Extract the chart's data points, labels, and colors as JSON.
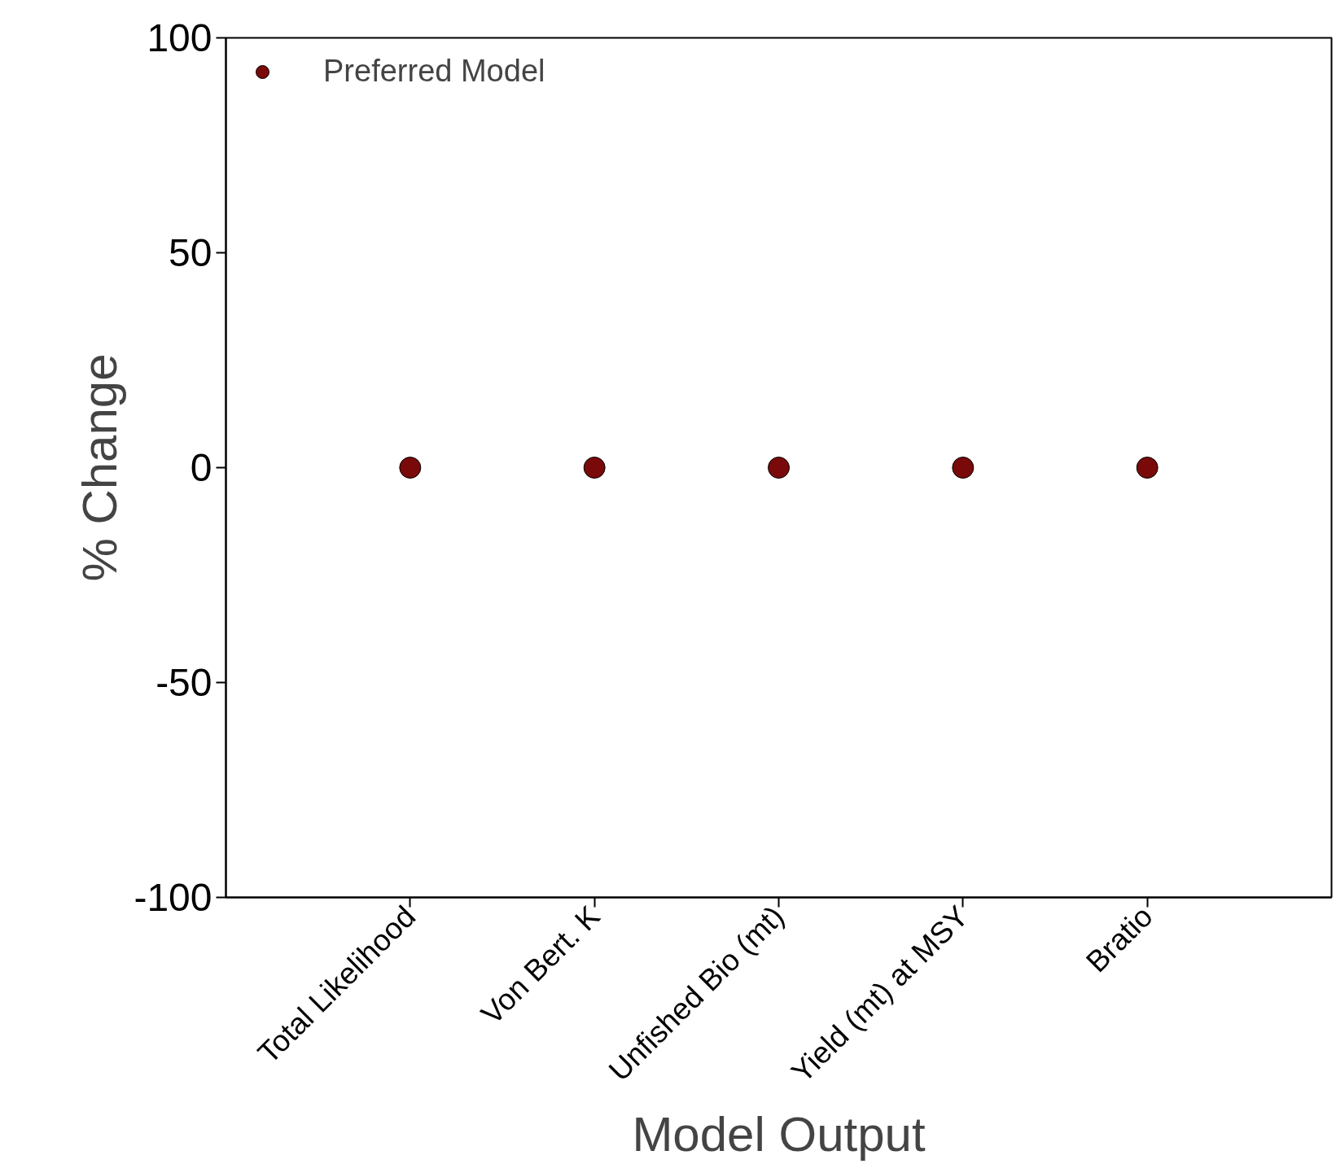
{
  "chart_data": {
    "type": "scatter",
    "xlabel": "Model Output",
    "ylabel": "% Change",
    "categories": [
      "Total Likelihood",
      "Von Bert. K",
      "Unfished Bio (mt)",
      "Yield (mt) at MSY",
      "Bratio"
    ],
    "series": [
      {
        "name": "Preferred Model",
        "color": "#7a0a0a",
        "values": [
          0,
          0,
          0,
          0,
          0
        ]
      }
    ],
    "ylim": [
      -100,
      100
    ],
    "yticks": [
      -100,
      -50,
      0,
      50,
      100
    ],
    "grid": false,
    "legend": "top left",
    "marker": "circle"
  }
}
